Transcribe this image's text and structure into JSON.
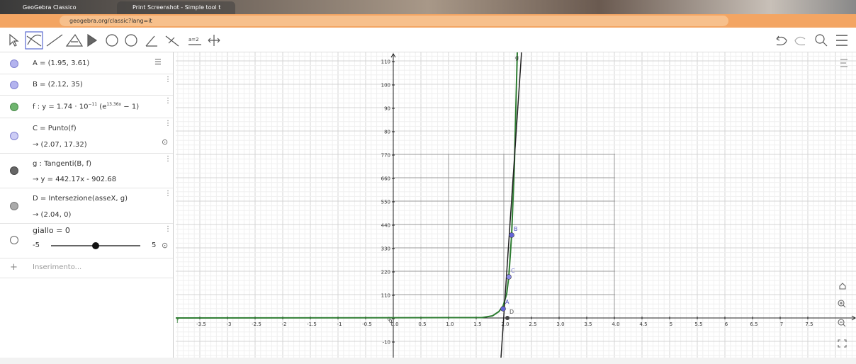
{
  "browser": {
    "tabs": [
      "GeoGebra Classico",
      "Print Screenshot - Simple tool t"
    ],
    "url": "geogebra.org/classic?lang=it"
  },
  "toolbar": {
    "slider_icon": "a=2"
  },
  "algebra": {
    "rows": [
      {
        "text": "A = (1.95, 3.61)"
      },
      {
        "text": "B = (2.12, 35)"
      },
      {
        "prefix": "f : y = 1.74 · 10",
        "exp1": "−11",
        "mid": "(e",
        "exp2": "13.36x",
        "suffix": " − 1)"
      },
      {
        "text": "C = Punto(f)",
        "result": "→  (2.07, 17.32)"
      },
      {
        "text": "g : Tangenti(B, f)",
        "result": "→  y = 442.17x - 902.68"
      },
      {
        "text": "D = Intersezione(asseX, g)",
        "result": "→  (2.04, 0)"
      },
      {
        "text": "giallo = 0",
        "min": "-5",
        "max": "5"
      }
    ],
    "input": "Inserimento..."
  },
  "graphics": {
    "x_labels": [
      "-3.5",
      "-3",
      "-2.5",
      "-2",
      "-1.5",
      "-1",
      "-0.5",
      "0.0",
      "0.5",
      "1.0",
      "1.5",
      "2.0",
      "2.5",
      "3.0",
      "3.5",
      "4.0",
      "4.5",
      "5",
      "5.5",
      "6",
      "6.5",
      "7",
      "7.5"
    ],
    "origin_label": "0",
    "y_labels": [
      "110",
      "100",
      "90",
      "80",
      "770",
      "660",
      "550",
      "440",
      "330",
      "220",
      "110",
      "0",
      "-10"
    ],
    "curve_labels": [
      "f",
      "g"
    ],
    "point_labels": [
      "A",
      "B",
      "C",
      "D"
    ]
  }
}
